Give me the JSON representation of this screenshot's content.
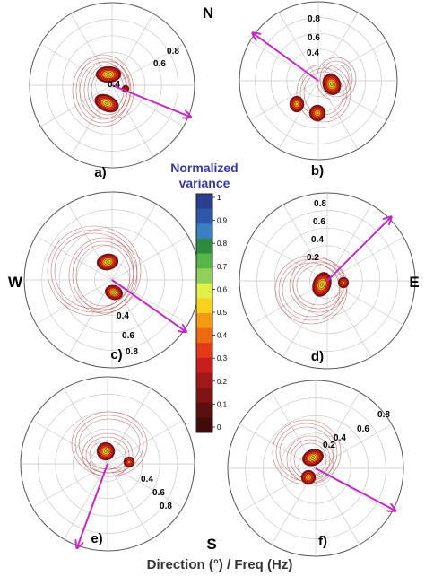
{
  "compass": {
    "north": "N",
    "south": "S",
    "east": "E",
    "west": "W"
  },
  "colorbar": {
    "title_line1": "Normalized",
    "title_line2": "variance",
    "ticks": [
      "1",
      "0.9",
      "0.8",
      "0.7",
      "0.6",
      "0.5",
      "0.4",
      "0.3",
      "0.2",
      "0.1",
      "0"
    ],
    "colors": [
      "#2a3f8f",
      "#2f56a8",
      "#3c7ec2",
      "#2e8b3e",
      "#57b446",
      "#8fd05a",
      "#dff04a",
      "#f7d21c",
      "#f29a13",
      "#ee6a12",
      "#e3381a",
      "#c81e1e",
      "#a11818",
      "#7e1414",
      "#5c0f0f",
      "#3f0b0b"
    ]
  },
  "xlabel": "Direction (°) / Freq (Hz)",
  "chart_data": [
    {
      "panel": "a)",
      "type": "polar-contour",
      "radial_ticks": [
        "0.4",
        "0.6",
        "0.8"
      ],
      "arrow_direction_deg": 112
    },
    {
      "panel": "b)",
      "type": "polar-contour",
      "radial_ticks": [
        "0.4",
        "0.6",
        "0.8"
      ],
      "arrow_direction_deg": 306
    },
    {
      "panel": "c)",
      "type": "polar-contour",
      "radial_ticks": [
        "0.4",
        "0.6",
        "0.8"
      ],
      "arrow_direction_deg": 125
    },
    {
      "panel": "d)",
      "type": "polar-contour",
      "radial_ticks": [
        "0.2",
        "0.4",
        "0.6",
        "0.8"
      ],
      "arrow_direction_deg": 45
    },
    {
      "panel": "e)",
      "type": "polar-contour",
      "radial_ticks": [
        "0.4",
        "0.6",
        "0.8"
      ],
      "arrow_direction_deg": 200
    },
    {
      "panel": "f)",
      "type": "polar-contour",
      "radial_ticks": [
        "0.2",
        "0.4",
        "0.6",
        "0.8"
      ],
      "arrow_direction_deg": 118
    }
  ]
}
